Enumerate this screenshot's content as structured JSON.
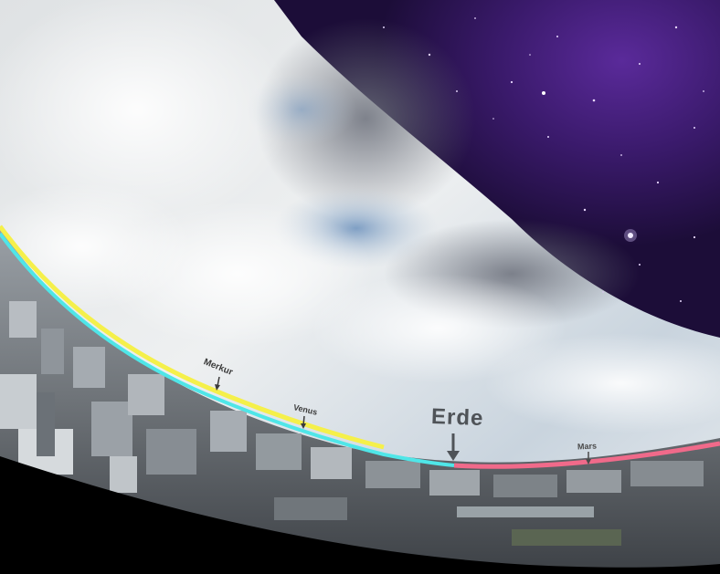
{
  "labels": {
    "erde": "Erde",
    "merkur": "Merkur",
    "venus": "Venus",
    "mars": "Mars"
  },
  "colors": {
    "sky_light": "#e9ecee",
    "sky_blue": "#a9bfd6",
    "space_purple": "#3a1a6b",
    "orbit_yellow": "#f5f04a",
    "orbit_cyan": "#4fe6e8",
    "orbit_pink": "#f06a8a",
    "city_gray": "#6e7378",
    "vignette": "#000000"
  }
}
